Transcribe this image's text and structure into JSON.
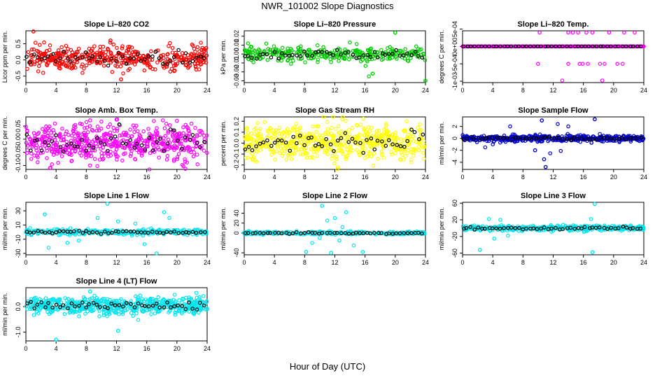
{
  "figure": {
    "title": "NWR_101002  Slope Diagnostics",
    "xlabel": "Hour of Day (UTC)"
  },
  "chart_data": [
    {
      "type": "scatter",
      "title": "Slope Li–820 CO2",
      "ylabel": "Licor ppm per min.",
      "color": "#ff0000",
      "xlim": [
        0,
        24
      ],
      "xticks": [
        "0",
        "4",
        "8",
        "12",
        "16",
        "20",
        "24"
      ],
      "ylim": [
        -0.7,
        0.9
      ],
      "yticks": [
        {
          "v": -0.5,
          "label": "-0.5"
        },
        {
          "v": 0,
          "label": "0.0"
        },
        {
          "v": 0.5,
          "label": "0.5"
        }
      ],
      "pattern": {
        "center": 0.05,
        "spread": 0.18,
        "n": 420,
        "outliers": [
          [
            1.0,
            0.88
          ],
          [
            12.6,
            -0.6
          ],
          [
            11.2,
            0.6
          ]
        ]
      },
      "series": [
        {
          "name": "",
          "x": [
            1.0,
            12.6,
            11.2,
            3.2,
            7.5
          ],
          "y": [
            0.88,
            -0.6,
            0.6,
            0.45,
            -0.4
          ]
        }
      ]
    },
    {
      "type": "scatter",
      "title": "Slope Li–820 Pressure",
      "ylabel": "kPa per min.",
      "color": "#00cc00",
      "xlim": [
        0,
        24
      ],
      "xticks": [
        "0",
        "4",
        "8",
        "12",
        "16",
        "20",
        "24"
      ],
      "ylim": [
        -0.032,
        0.026
      ],
      "yticks": [
        {
          "v": -0.03,
          "label": "-0.03"
        },
        {
          "v": -0.02,
          "label": "-0.02"
        },
        {
          "v": -0.01,
          "label": "-0.01"
        },
        {
          "v": 0,
          "label": "0.00"
        },
        {
          "v": 0.01,
          "label": "0.01"
        },
        {
          "v": 0.02,
          "label": "0.02"
        }
      ],
      "pattern": {
        "center": 0.0,
        "spread": 0.004,
        "n": 320,
        "outliers": [
          [
            20.0,
            0.024
          ],
          [
            17.0,
            -0.022
          ],
          [
            24.0,
            -0.03
          ],
          [
            16.5,
            -0.025
          ]
        ]
      },
      "series": [
        {
          "name": "",
          "x": [
            20.0,
            17.0,
            24.0,
            0.5,
            6.2
          ],
          "y": [
            0.024,
            -0.022,
            -0.03,
            0.012,
            -0.011
          ]
        }
      ]
    },
    {
      "type": "scatter",
      "title": "Slope Li–820 Temp.",
      "ylabel": "degrees C per min.",
      "color": "#ff00ff",
      "xlim": [
        0,
        24
      ],
      "xticks": [
        "0",
        "4",
        "8",
        "12",
        "16",
        "20",
        "24"
      ],
      "ylim": [
        -0.00104,
        0.00045
      ],
      "yticks": [
        {
          "v": -0.001,
          "label": "-1e-03"
        },
        {
          "v": -0.0005,
          "label": "-5e-04"
        },
        {
          "v": 0,
          "label": "0e+00"
        },
        {
          "v": 0.0005,
          "label": "5e-04"
        }
      ],
      "pattern": {
        "center": 0.0,
        "spread": 0.0,
        "n": 0,
        "outliers": []
      },
      "series": [
        {
          "name": "",
          "x": [
            10.2,
            14.0,
            14.6,
            15.3,
            16.4,
            17.2,
            19.4,
            21.4,
            22.8,
            10.0,
            14.0,
            15.5,
            15.9,
            16.6,
            18.2,
            18.8,
            20.5,
            21.2,
            13.2,
            18.5
          ],
          "y": [
            0.0004,
            0.0004,
            0.0004,
            0.0004,
            0.0004,
            0.0004,
            0.0004,
            0.0004,
            0.0004,
            -0.0005,
            -0.0005,
            -0.0005,
            -0.0005,
            -0.0005,
            -0.0005,
            -0.0005,
            -0.0005,
            -0.0005,
            -0.00098,
            -0.00098
          ]
        }
      ]
    },
    {
      "type": "scatter",
      "title": "Slope Amb. Box Temp.",
      "ylabel": "degrees C per min.",
      "color": "#ff00ff",
      "xlim": [
        0,
        24
      ],
      "xticks": [
        "0",
        "4",
        "8",
        "12",
        "16",
        "20",
        "24"
      ],
      "ylim": [
        -0.115,
        0.085
      ],
      "yticks": [
        {
          "v": -0.1,
          "label": "-0.10"
        },
        {
          "v": -0.05,
          "label": "-0.05"
        },
        {
          "v": 0,
          "label": "0.00"
        },
        {
          "v": 0.05,
          "label": "0.05"
        }
      ],
      "pattern": {
        "center": -0.01,
        "spread": 0.035,
        "n": 560,
        "outliers": [
          [
            12.0,
            0.075
          ],
          [
            3.2,
            -0.11
          ]
        ]
      },
      "series": [
        {
          "name": "",
          "x": [
            12.0,
            3.2,
            20.0,
            8.5
          ],
          "y": [
            0.075,
            -0.11,
            0.07,
            -0.1
          ]
        }
      ]
    },
    {
      "type": "scatter",
      "title": "Slope Gas Stream RH",
      "ylabel": "percent per min.",
      "color": "#ffff00",
      "xlim": [
        0,
        24
      ],
      "xticks": [
        "0",
        "4",
        "8",
        "12",
        "16",
        "20",
        "24"
      ],
      "ylim": [
        -0.24,
        0.24
      ],
      "yticks": [
        {
          "v": -0.2,
          "label": "-0.2"
        },
        {
          "v": -0.1,
          "label": "-0.1"
        },
        {
          "v": 0,
          "label": "0.0"
        },
        {
          "v": 0.1,
          "label": "0.1"
        },
        {
          "v": 0.2,
          "label": "0.2"
        }
      ],
      "pattern": {
        "center": 0.01,
        "spread": 0.085,
        "n": 560,
        "outliers": [
          [
            13.0,
            0.22
          ],
          [
            12.4,
            -0.22
          ]
        ]
      },
      "series": [
        {
          "name": "",
          "x": [
            13.0,
            12.4,
            1.6,
            21.5
          ],
          "y": [
            0.22,
            -0.22,
            -0.17,
            0.2
          ]
        }
      ]
    },
    {
      "type": "scatter",
      "title": "Slope Sample Flow",
      "ylabel": "ml/min per min.",
      "color": "#0000cc",
      "xlim": [
        0,
        24
      ],
      "xticks": [
        "0",
        "4",
        "8",
        "12",
        "16",
        "20",
        "24"
      ],
      "ylim": [
        -5.2,
        3.6
      ],
      "yticks": [
        {
          "v": -4,
          "label": "-4"
        },
        {
          "v": -2,
          "label": "-2"
        },
        {
          "v": 0,
          "label": "0"
        },
        {
          "v": 2,
          "label": "2"
        }
      ],
      "pattern": {
        "center": 0.0,
        "spread": 0.25,
        "n": 480,
        "outliers": [
          [
            10.5,
            3.0
          ],
          [
            11.0,
            -4.8
          ],
          [
            10.8,
            -3.5
          ],
          [
            9.6,
            -2.0
          ],
          [
            12.6,
            2.4
          ],
          [
            17.5,
            3.2
          ],
          [
            3.0,
            -1.5
          ],
          [
            4.0,
            -1.0
          ],
          [
            6.3,
            2.0
          ],
          [
            11.6,
            -2.5
          ],
          [
            13.0,
            -2.1
          ],
          [
            14.0,
            2.0
          ]
        ]
      },
      "series": [
        {
          "name": "",
          "x": [
            10.5,
            11.0,
            10.8,
            9.6,
            17.5
          ],
          "y": [
            3.0,
            -4.8,
            -3.5,
            -2.0,
            3.2
          ]
        }
      ]
    },
    {
      "type": "scatter",
      "title": "Slope Line 1 Flow",
      "ylabel": "ml/min per min.",
      "color": "#00e5ee",
      "xlim": [
        0,
        24
      ],
      "xticks": [
        "0",
        "4",
        "8",
        "12",
        "16",
        "20",
        "24"
      ],
      "ylim": [
        -32,
        42
      ],
      "yticks": [
        {
          "v": -30,
          "label": "-30"
        },
        {
          "v": -10,
          "label": "-10"
        },
        {
          "v": 10,
          "label": "10"
        },
        {
          "v": 30,
          "label": "30"
        }
      ],
      "pattern": {
        "center": 0.0,
        "spread": 2.0,
        "n": 300,
        "outliers": [
          [
            10.8,
            40
          ],
          [
            17.3,
            -30
          ],
          [
            2.5,
            25
          ],
          [
            3.0,
            -22
          ],
          [
            5.5,
            -15
          ],
          [
            9.5,
            20
          ],
          [
            12.2,
            15
          ],
          [
            15.7,
            -17
          ],
          [
            18.3,
            28
          ],
          [
            19.0,
            20
          ],
          [
            7.0,
            -12
          ],
          [
            14.5,
            12
          ]
        ]
      },
      "series": [
        {
          "name": "",
          "x": [
            10.8,
            17.3,
            2.5
          ],
          "y": [
            40,
            -30,
            25
          ]
        }
      ]
    },
    {
      "type": "scatter",
      "title": "Slope Line 2 Flow",
      "ylabel": "ml/min per min.",
      "color": "#00e5ee",
      "xlim": [
        0,
        24
      ],
      "xticks": [
        "0",
        "4",
        "8",
        "12",
        "16",
        "20",
        "24"
      ],
      "ylim": [
        -44,
        62
      ],
      "yticks": [
        {
          "v": -40,
          "label": "-40"
        },
        {
          "v": 0,
          "label": "0"
        },
        {
          "v": 20,
          "label": "20"
        },
        {
          "v": 40,
          "label": "40"
        }
      ],
      "pattern": {
        "center": 0.0,
        "spread": 1.5,
        "n": 280,
        "outliers": [
          [
            10.3,
            55
          ],
          [
            11.5,
            -40
          ],
          [
            8.2,
            -38
          ],
          [
            12.0,
            30
          ],
          [
            13.5,
            42
          ],
          [
            9.0,
            -20
          ],
          [
            14.5,
            -25
          ],
          [
            15.7,
            -38
          ],
          [
            11.0,
            25
          ],
          [
            12.6,
            -15
          ],
          [
            13.0,
            12
          ],
          [
            10.0,
            -10
          ]
        ]
      },
      "series": [
        {
          "name": "",
          "x": [
            10.3,
            11.5,
            8.2
          ],
          "y": [
            55,
            -40,
            -38
          ]
        }
      ]
    },
    {
      "type": "scatter",
      "title": "Slope Line 3 Flow",
      "ylabel": "ml/min per min.",
      "color": "#00e5ee",
      "xlim": [
        0,
        24
      ],
      "xticks": [
        "0",
        "4",
        "8",
        "12",
        "16",
        "20",
        "24"
      ],
      "ylim": [
        -64,
        62
      ],
      "yticks": [
        {
          "v": -60,
          "label": "-60"
        },
        {
          "v": -20,
          "label": "-20"
        },
        {
          "v": 20,
          "label": "20"
        },
        {
          "v": 60,
          "label": "60"
        }
      ],
      "pattern": {
        "center": 0.0,
        "spread": 3.0,
        "n": 420,
        "outliers": [
          [
            17.5,
            58
          ],
          [
            17.2,
            -58
          ],
          [
            2.3,
            -52
          ],
          [
            3.5,
            22
          ],
          [
            4.2,
            -25
          ],
          [
            5.0,
            20
          ],
          [
            6.0,
            -18
          ],
          [
            17.0,
            22
          ]
        ]
      },
      "series": [
        {
          "name": "",
          "x": [
            17.5,
            17.2,
            2.3
          ],
          "y": [
            58,
            -58,
            -52
          ]
        }
      ]
    },
    {
      "type": "scatter",
      "title": "Slope Line 4 (LT) Flow",
      "ylabel": "ml/min per min.",
      "color": "#00e5ee",
      "xlim": [
        0,
        24
      ],
      "xticks": [
        "0",
        "4",
        "8",
        "12",
        "16",
        "20",
        "24"
      ],
      "ylim": [
        -1.35,
        0.75
      ],
      "yticks": [
        {
          "v": -1.0,
          "label": "-1.0"
        },
        {
          "v": 0,
          "label": "0.0"
        }
      ],
      "pattern": {
        "center": 0.05,
        "spread": 0.17,
        "n": 560,
        "outliers": [
          [
            4.0,
            -1.3
          ],
          [
            12.2,
            -0.95
          ],
          [
            8.5,
            0.6
          ]
        ]
      },
      "series": [
        {
          "name": "",
          "x": [
            4.0,
            12.2,
            8.5
          ],
          "y": [
            -1.3,
            -0.95,
            0.6
          ]
        }
      ]
    }
  ]
}
